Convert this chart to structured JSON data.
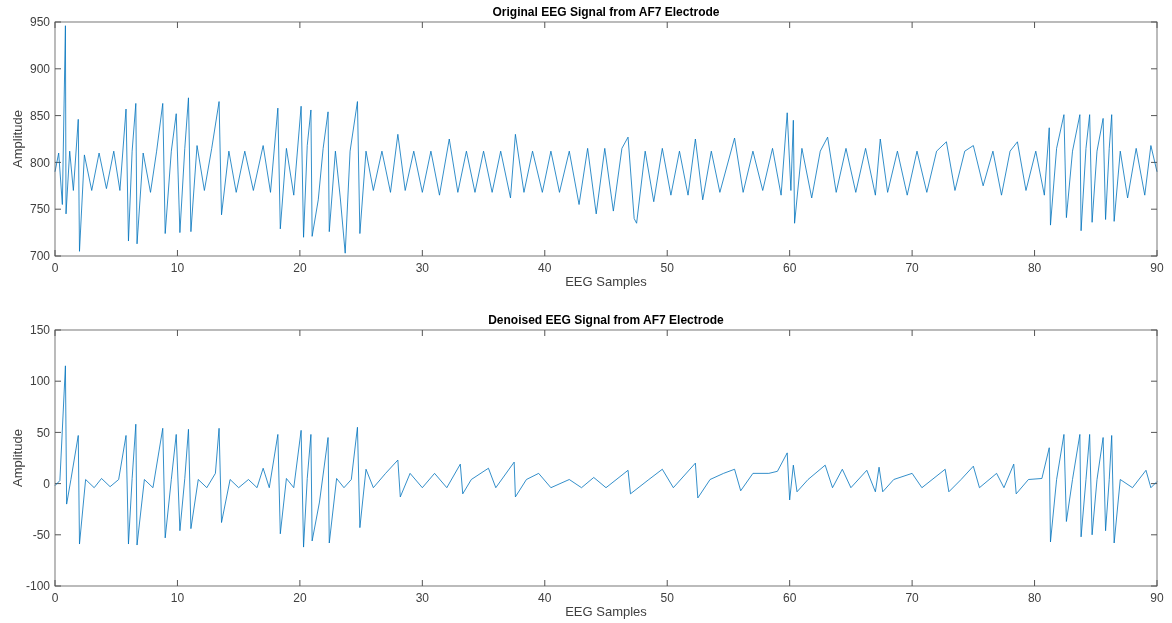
{
  "chart_data": [
    {
      "type": "line",
      "title": "Original EEG Signal from AF7 Electrode",
      "xlabel": "EEG Samples",
      "ylabel": "Amplitude",
      "xlim": [
        0,
        90
      ],
      "xticks": [
        0,
        10,
        20,
        30,
        40,
        50,
        60,
        70,
        80,
        90
      ],
      "ylim": [
        700,
        950
      ],
      "yticks": [
        700,
        750,
        800,
        850,
        900,
        950
      ],
      "series": [
        {
          "color": "#0072bd",
          "x": [
            0,
            0.3,
            0.6,
            0.85,
            0.9,
            1.2,
            1.5,
            1.9,
            2.0,
            2.4,
            3,
            3.6,
            4.2,
            4.8,
            5.3,
            5.8,
            6.0,
            6.3,
            6.6,
            6.7,
            7.2,
            7.8,
            8.3,
            8.8,
            9.0,
            9.5,
            9.9,
            10.2,
            10.6,
            10.9,
            11.1,
            11.6,
            12.2,
            12.8,
            13.4,
            13.6,
            14.2,
            14.8,
            15.5,
            16.2,
            17,
            17.6,
            18.2,
            18.4,
            18.9,
            19.5,
            20.1,
            20.3,
            20.6,
            20.9,
            21.0,
            21.5,
            21.9,
            22.3,
            22.4,
            22.9,
            23.3,
            23.7,
            24.1,
            24.7,
            24.9,
            25.4,
            26,
            26.7,
            27.4,
            28,
            28.6,
            29.3,
            30,
            30.7,
            31.4,
            32.2,
            32.9,
            33.6,
            34.3,
            35,
            35.7,
            36.4,
            37.2,
            37.6,
            38.3,
            39,
            39.8,
            40.5,
            41.2,
            42,
            42.8,
            43.5,
            44.2,
            44.9,
            45.6,
            46.3,
            46.8,
            47.3,
            47.5,
            48.2,
            48.9,
            49.6,
            50.3,
            51,
            51.7,
            52.3,
            52.9,
            53.6,
            54.3,
            55.5,
            56.2,
            57,
            57.8,
            58.6,
            59.3,
            59.8,
            60.1,
            60.3,
            60.4,
            61,
            61.8,
            62.5,
            63.1,
            63.8,
            64.6,
            65.4,
            66.2,
            67,
            67.4,
            68,
            68.8,
            69.6,
            70.4,
            71.2,
            72,
            72.8,
            73.5,
            74.3,
            75,
            75.8,
            76.6,
            77.3,
            78,
            78.6,
            79.3,
            80.1,
            80.8,
            81.2,
            81.3,
            81.8,
            82.4,
            82.6,
            83.1,
            83.7,
            83.8,
            84.2,
            84.5,
            84.7,
            85.1,
            85.6,
            85.8,
            86.1,
            86.3,
            86.5,
            87,
            87.6,
            88.3,
            89,
            89.5,
            90
          ],
          "values": [
            790,
            810,
            755,
            946,
            745,
            812,
            770,
            846,
            705,
            808,
            770,
            810,
            772,
            812,
            770,
            857,
            716,
            812,
            863,
            713,
            810,
            768,
            812,
            863,
            724,
            812,
            852,
            725,
            815,
            869,
            726,
            818,
            770,
            815,
            865,
            744,
            812,
            768,
            812,
            770,
            818,
            768,
            858,
            729,
            815,
            765,
            860,
            720,
            818,
            856,
            721,
            760,
            815,
            854,
            726,
            812,
            762,
            703,
            812,
            865,
            724,
            812,
            770,
            812,
            768,
            830,
            770,
            812,
            768,
            812,
            765,
            825,
            768,
            812,
            768,
            812,
            768,
            812,
            762,
            830,
            768,
            812,
            768,
            812,
            768,
            812,
            755,
            815,
            745,
            815,
            748,
            815,
            827,
            740,
            735,
            812,
            758,
            815,
            765,
            812,
            765,
            825,
            760,
            812,
            768,
            826,
            768,
            812,
            770,
            815,
            765,
            853,
            770,
            845,
            735,
            815,
            762,
            812,
            827,
            768,
            815,
            768,
            815,
            765,
            825,
            768,
            812,
            765,
            812,
            768,
            812,
            822,
            770,
            812,
            818,
            775,
            812,
            765,
            812,
            822,
            770,
            812,
            765,
            837,
            733,
            815,
            851,
            741,
            812,
            851,
            727,
            815,
            851,
            736,
            812,
            847,
            739,
            815,
            851,
            737,
            812,
            762,
            815,
            765,
            818,
            790
          ]
        }
      ]
    },
    {
      "type": "line",
      "title": "Denoised EEG Signal from AF7 Electrode",
      "xlabel": "EEG Samples",
      "ylabel": "Amplitude",
      "xlim": [
        0,
        90
      ],
      "xticks": [
        0,
        10,
        20,
        30,
        40,
        50,
        60,
        70,
        80,
        90
      ],
      "ylim": [
        -100,
        150
      ],
      "yticks": [
        -100,
        -50,
        0,
        50,
        100,
        150
      ],
      "series": [
        {
          "color": "#0072bd",
          "x": [
            0,
            0.4,
            0.85,
            0.95,
            1.3,
            1.9,
            2.0,
            2.5,
            3.2,
            3.8,
            4.5,
            5.2,
            5.8,
            6.0,
            6.3,
            6.6,
            6.7,
            7.3,
            8,
            8.8,
            9.0,
            9.5,
            9.9,
            10.2,
            10.6,
            10.9,
            11.1,
            11.7,
            12.4,
            13.1,
            13.4,
            13.6,
            14.3,
            15,
            15.8,
            16.5,
            17,
            17.5,
            18.2,
            18.4,
            18.9,
            19.5,
            20.1,
            20.3,
            20.6,
            20.9,
            21.0,
            21.6,
            22.3,
            22.4,
            23,
            23.6,
            24.2,
            24.7,
            24.9,
            25.4,
            26,
            27,
            28,
            28.2,
            29,
            30,
            31,
            32,
            33.1,
            33.3,
            34,
            35.4,
            36,
            37.5,
            37.6,
            38.5,
            39.5,
            40.5,
            42,
            43,
            44,
            45,
            46.8,
            47,
            48.5,
            49.6,
            50.5,
            52.3,
            52.5,
            53.5,
            54.6,
            55.5,
            56,
            57,
            58.3,
            59,
            59.8,
            60,
            60.3,
            60.6,
            61.5,
            62.9,
            63.5,
            64.3,
            65,
            66.3,
            67,
            67.3,
            67.6,
            68.5,
            70,
            70.8,
            72.7,
            73,
            74,
            75,
            75.5,
            76.9,
            77.5,
            78.3,
            78.5,
            79.5,
            80.6,
            81.2,
            81.3,
            81.8,
            82.4,
            82.6,
            83.1,
            83.7,
            83.8,
            84.2,
            84.5,
            84.7,
            85.1,
            85.6,
            85.8,
            86.1,
            86.3,
            86.5,
            87,
            88,
            89.1,
            89.5,
            90
          ],
          "values": [
            -2,
            3,
            115,
            -20,
            4,
            47,
            -59,
            4,
            -4,
            5,
            -3,
            4,
            47,
            -59,
            5,
            58,
            -60,
            4,
            -4,
            54,
            -53,
            4,
            48,
            -46,
            5,
            53,
            -44,
            4,
            -4,
            10,
            54,
            -38,
            4,
            -4,
            4,
            -4,
            15,
            -4,
            48,
            -49,
            5,
            -4,
            52,
            -62,
            5,
            48,
            -56,
            -18,
            45,
            -58,
            5,
            -4,
            4,
            55,
            -43,
            14,
            -4,
            10,
            23,
            -13,
            10,
            -4,
            10,
            -4,
            19,
            -10,
            4,
            15,
            -4,
            21,
            -13,
            4,
            10,
            -4,
            4,
            -4,
            6,
            -4,
            13,
            -10,
            4,
            14,
            -4,
            20,
            -14,
            4,
            10,
            14,
            -7,
            10,
            10,
            12,
            30,
            -16,
            18,
            -8,
            4,
            18,
            -4,
            14,
            -4,
            13,
            -8,
            16,
            -8,
            4,
            10,
            -4,
            14,
            -8,
            4,
            17,
            -4,
            10,
            -4,
            19,
            -10,
            4,
            5,
            35,
            -57,
            4,
            48,
            -37,
            4,
            48,
            -52,
            4,
            48,
            -50,
            4,
            45,
            -46,
            4,
            47,
            -58,
            4,
            -4,
            13,
            -4,
            2
          ]
        }
      ]
    }
  ]
}
